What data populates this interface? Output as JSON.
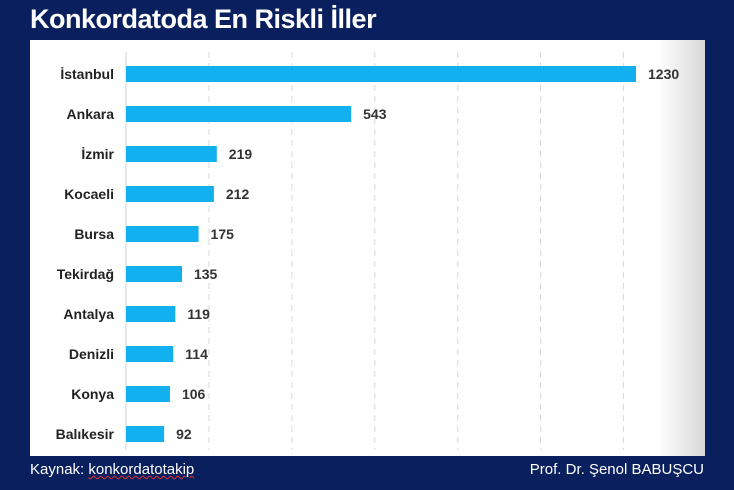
{
  "title": "Konkordatoda En Riskli İller",
  "footer": {
    "source_label": "Kaynak:",
    "source_value": "konkordatotakip",
    "author": "Prof. Dr. Şenol BABUŞCU"
  },
  "chart_data": {
    "type": "bar",
    "orientation": "horizontal",
    "title": "",
    "categories": [
      "İstanbul",
      "Ankara",
      "İzmir",
      "Kocaeli",
      "Bursa",
      "Tekirdağ",
      "Antalya",
      "Denizli",
      "Konya",
      "Balıkesir"
    ],
    "values": [
      1230,
      543,
      219,
      212,
      175,
      135,
      119,
      114,
      106,
      92
    ],
    "xlim": [
      0,
      1400
    ],
    "grid": true,
    "bar_color": "#12b0ee",
    "data_labels": true
  }
}
